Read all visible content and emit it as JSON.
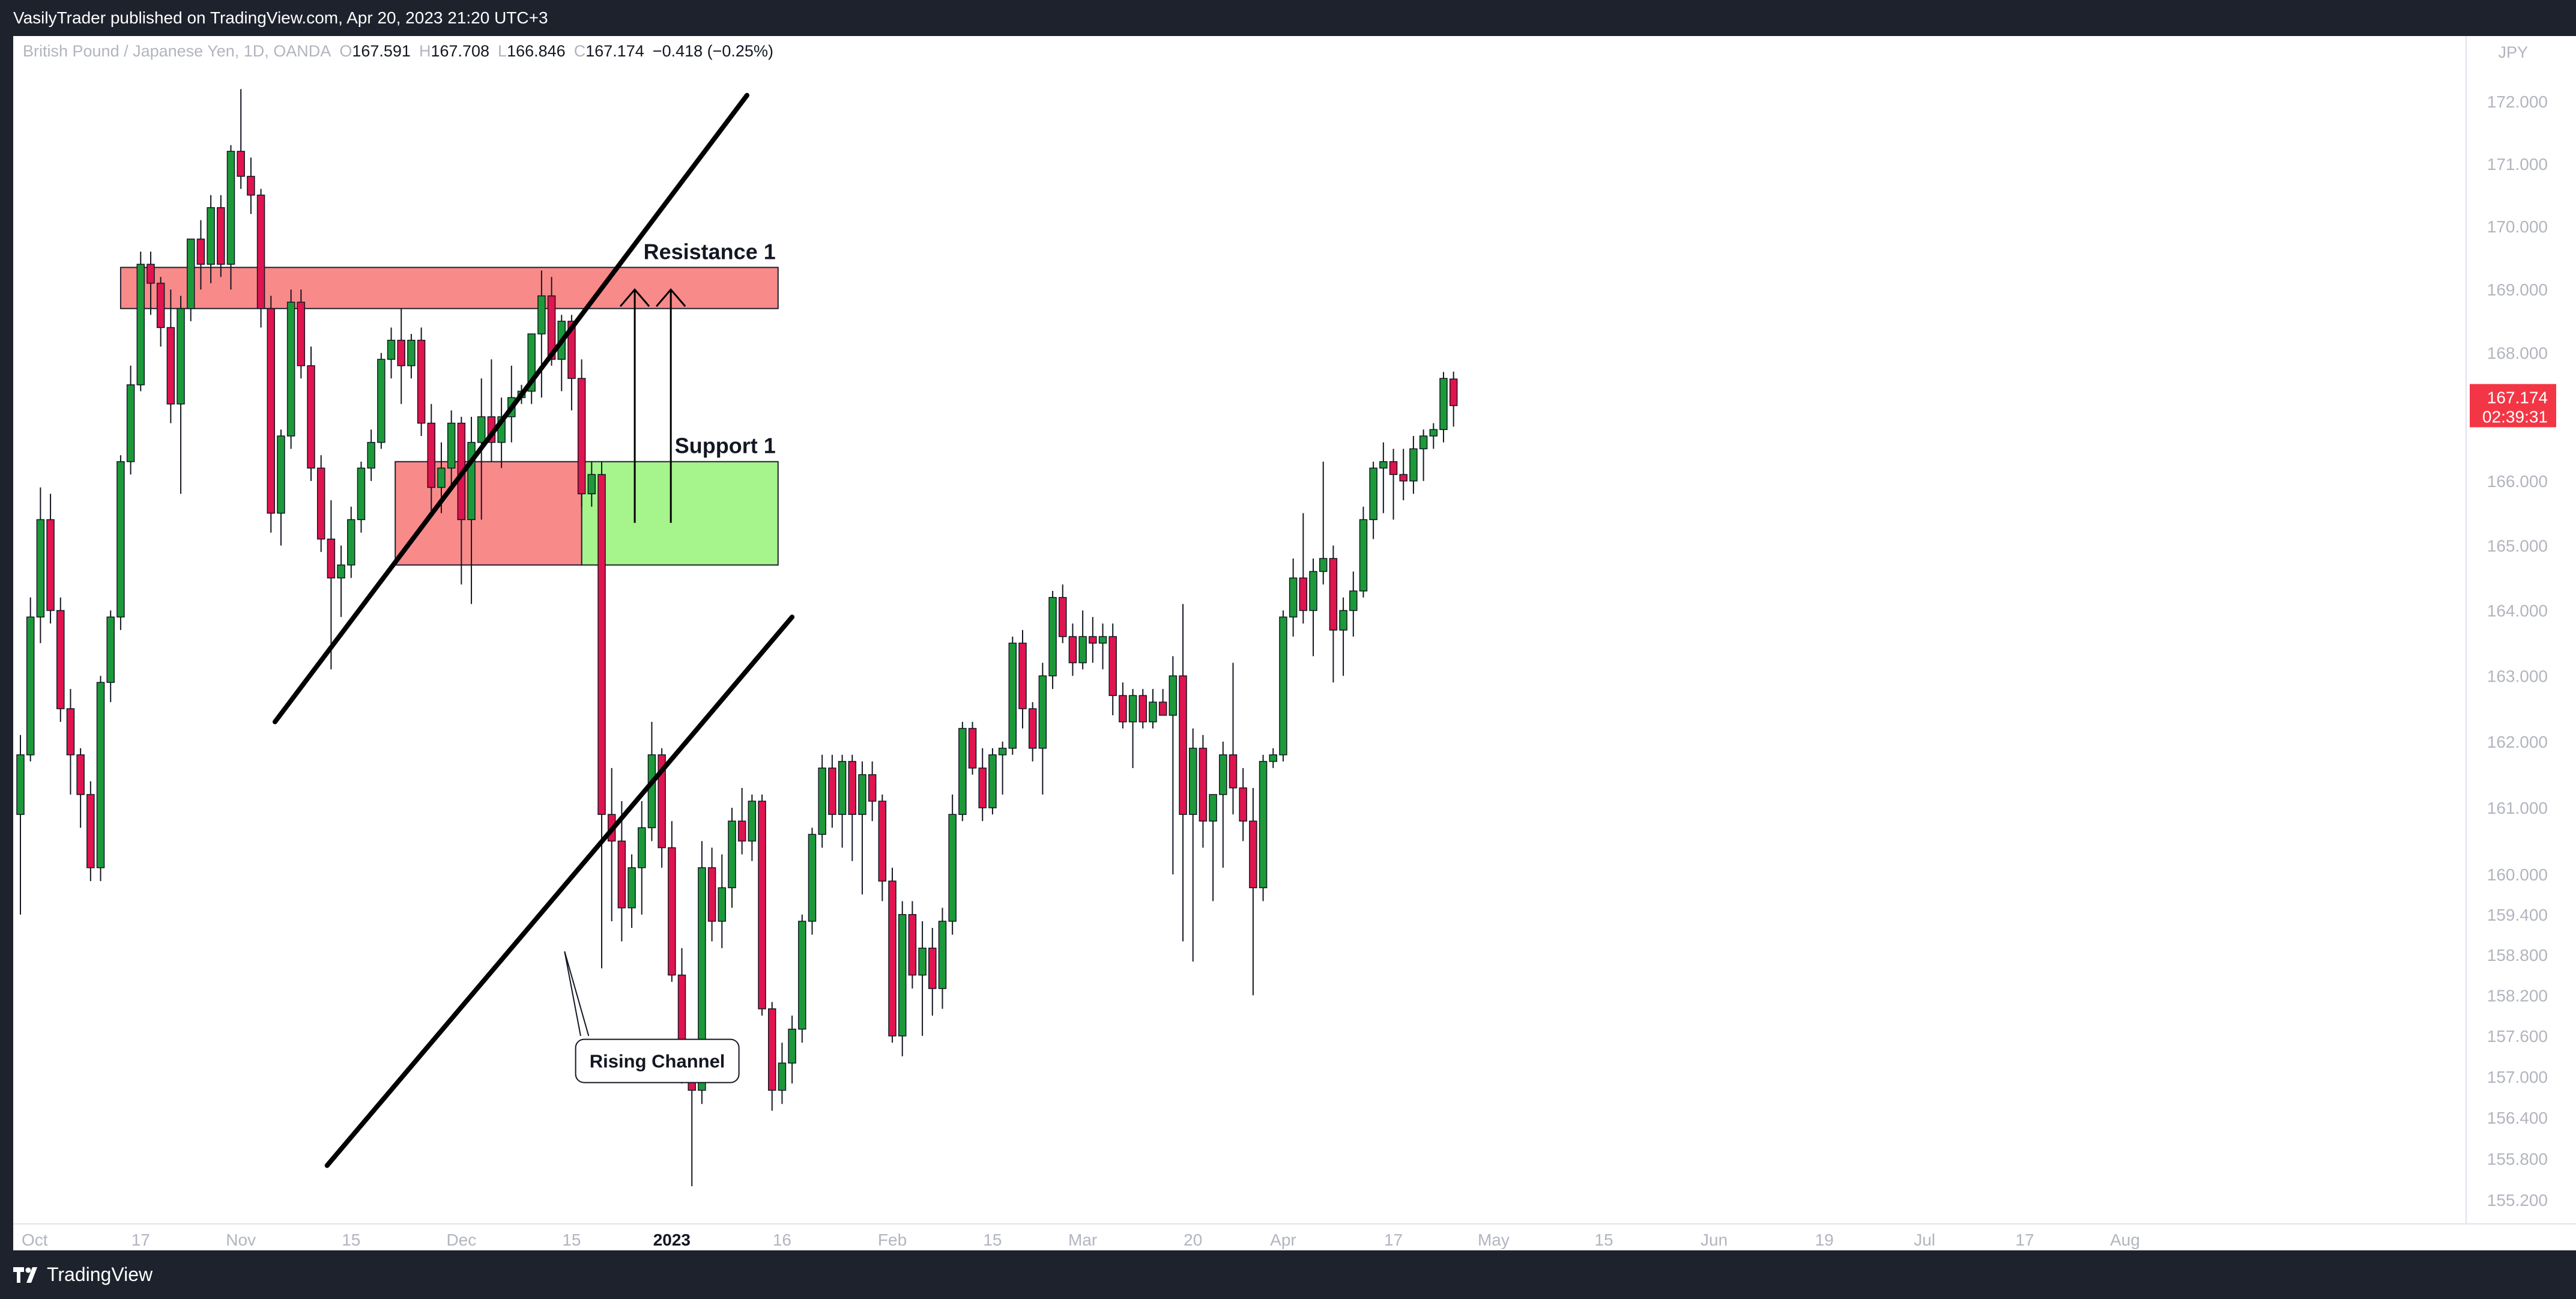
{
  "header": {
    "published": "VasilyTrader published on TradingView.com, Apr 20, 2023 21:20 UTC+3"
  },
  "footer": {
    "brand": "TradingView"
  },
  "legend": {
    "symbol": "British Pound / Japanese Yen, 1D, OANDA",
    "open_label": "O",
    "open": "167.591",
    "high_label": "H",
    "high": "167.708",
    "low_label": "L",
    "low": "166.846",
    "close_label": "C",
    "close": "167.174",
    "change": "−0.418 (−0.25%)"
  },
  "price_axis": {
    "currency": "JPY",
    "tick_labels": [
      "172.000",
      "171.000",
      "170.000",
      "169.000",
      "168.000",
      "166.000",
      "165.000",
      "164.000",
      "163.000",
      "162.000",
      "161.000",
      "160.000",
      "159.400",
      "158.800",
      "158.200",
      "157.600",
      "157.000",
      "156.400",
      "155.800",
      "155.200"
    ]
  },
  "price_tag": {
    "price": "167.174",
    "countdown": "02:39:31",
    "color": "#f23645"
  },
  "time_axis": {
    "labels": [
      "Oct",
      "17",
      "Nov",
      "15",
      "Dec",
      "15",
      "2023",
      "16",
      "Feb",
      "15",
      "Mar",
      "20",
      "Apr",
      "17",
      "May",
      "15",
      "Jun",
      "19",
      "Jul",
      "17",
      "Aug"
    ],
    "bold": [
      "2023"
    ]
  },
  "annotations": {
    "resistance": "Resistance 1",
    "support": "Support 1",
    "channel_callout": "Rising Channel"
  },
  "colors": {
    "up": "#1c9a3a",
    "down": "#e0144f",
    "resistance_zone": "#f98a8a",
    "support_zone": "#a6f48c",
    "background": "#ffffff",
    "frame": "#1e222d"
  },
  "chart_data": {
    "type": "candlestick",
    "symbol": "GBPJPY",
    "timeframe": "1D",
    "yrange": [
      155.0,
      172.4
    ],
    "scale": "log",
    "candles": [
      {
        "o": 160.9,
        "h": 162.1,
        "l": 159.4,
        "c": 161.8
      },
      {
        "o": 161.8,
        "h": 164.2,
        "l": 161.7,
        "c": 163.9
      },
      {
        "o": 163.9,
        "h": 165.9,
        "l": 163.5,
        "c": 165.4
      },
      {
        "o": 165.4,
        "h": 165.8,
        "l": 163.8,
        "c": 164.0
      },
      {
        "o": 164.0,
        "h": 164.2,
        "l": 162.3,
        "c": 162.5
      },
      {
        "o": 162.5,
        "h": 162.8,
        "l": 161.2,
        "c": 161.8
      },
      {
        "o": 161.8,
        "h": 161.9,
        "l": 160.7,
        "c": 161.2
      },
      {
        "o": 161.2,
        "h": 161.4,
        "l": 159.9,
        "c": 160.1
      },
      {
        "o": 160.1,
        "h": 163.0,
        "l": 159.9,
        "c": 162.9
      },
      {
        "o": 162.9,
        "h": 164.0,
        "l": 162.6,
        "c": 163.9
      },
      {
        "o": 163.9,
        "h": 166.4,
        "l": 163.7,
        "c": 166.3
      },
      {
        "o": 166.3,
        "h": 167.8,
        "l": 166.1,
        "c": 167.5
      },
      {
        "o": 167.5,
        "h": 169.6,
        "l": 167.4,
        "c": 169.4
      },
      {
        "o": 169.4,
        "h": 169.6,
        "l": 168.6,
        "c": 169.1
      },
      {
        "o": 169.1,
        "h": 169.2,
        "l": 168.1,
        "c": 168.4
      },
      {
        "o": 168.4,
        "h": 169.0,
        "l": 166.9,
        "c": 167.2
      },
      {
        "o": 167.2,
        "h": 168.9,
        "l": 165.8,
        "c": 168.7
      },
      {
        "o": 168.7,
        "h": 169.8,
        "l": 168.5,
        "c": 169.8
      },
      {
        "o": 169.8,
        "h": 170.1,
        "l": 169.0,
        "c": 169.4
      },
      {
        "o": 169.4,
        "h": 170.5,
        "l": 169.1,
        "c": 170.3
      },
      {
        "o": 170.3,
        "h": 170.5,
        "l": 169.2,
        "c": 169.4
      },
      {
        "o": 169.4,
        "h": 171.3,
        "l": 169.0,
        "c": 171.2
      },
      {
        "o": 171.2,
        "h": 172.2,
        "l": 170.6,
        "c": 170.8
      },
      {
        "o": 170.8,
        "h": 171.1,
        "l": 170.2,
        "c": 170.5
      },
      {
        "o": 170.5,
        "h": 170.6,
        "l": 168.4,
        "c": 168.7
      },
      {
        "o": 168.7,
        "h": 168.9,
        "l": 165.2,
        "c": 165.5
      },
      {
        "o": 165.5,
        "h": 166.8,
        "l": 165.0,
        "c": 166.7
      },
      {
        "o": 166.7,
        "h": 169.0,
        "l": 166.5,
        "c": 168.8
      },
      {
        "o": 168.8,
        "h": 169.0,
        "l": 167.6,
        "c": 167.8
      },
      {
        "o": 167.8,
        "h": 168.1,
        "l": 166.0,
        "c": 166.2
      },
      {
        "o": 166.2,
        "h": 166.4,
        "l": 164.9,
        "c": 165.1
      },
      {
        "o": 165.1,
        "h": 165.7,
        "l": 163.1,
        "c": 164.5
      },
      {
        "o": 164.5,
        "h": 165.0,
        "l": 163.9,
        "c": 164.7
      },
      {
        "o": 164.7,
        "h": 165.6,
        "l": 164.5,
        "c": 165.4
      },
      {
        "o": 165.4,
        "h": 166.3,
        "l": 165.2,
        "c": 166.2
      },
      {
        "o": 166.2,
        "h": 166.8,
        "l": 166.0,
        "c": 166.6
      },
      {
        "o": 166.6,
        "h": 168.0,
        "l": 166.5,
        "c": 167.9
      },
      {
        "o": 167.9,
        "h": 168.4,
        "l": 167.6,
        "c": 168.2
      },
      {
        "o": 168.2,
        "h": 168.7,
        "l": 167.2,
        "c": 167.8
      },
      {
        "o": 167.8,
        "h": 168.3,
        "l": 167.6,
        "c": 168.2
      },
      {
        "o": 168.2,
        "h": 168.4,
        "l": 166.7,
        "c": 166.9
      },
      {
        "o": 166.9,
        "h": 167.2,
        "l": 165.5,
        "c": 165.9
      },
      {
        "o": 165.9,
        "h": 166.6,
        "l": 165.5,
        "c": 166.2
      },
      {
        "o": 166.2,
        "h": 167.1,
        "l": 165.9,
        "c": 166.9
      },
      {
        "o": 166.9,
        "h": 167.0,
        "l": 164.4,
        "c": 165.4
      },
      {
        "o": 165.4,
        "h": 167.0,
        "l": 164.1,
        "c": 166.6
      },
      {
        "o": 166.6,
        "h": 167.6,
        "l": 165.4,
        "c": 167.0
      },
      {
        "o": 167.0,
        "h": 167.9,
        "l": 166.3,
        "c": 166.6
      },
      {
        "o": 166.6,
        "h": 167.3,
        "l": 166.2,
        "c": 167.0
      },
      {
        "o": 167.0,
        "h": 167.8,
        "l": 166.6,
        "c": 167.3
      },
      {
        "o": 167.3,
        "h": 167.5,
        "l": 167.2,
        "c": 167.4
      },
      {
        "o": 167.4,
        "h": 168.3,
        "l": 167.2,
        "c": 168.3
      },
      {
        "o": 168.3,
        "h": 169.3,
        "l": 167.3,
        "c": 168.9
      },
      {
        "o": 168.9,
        "h": 169.2,
        "l": 167.8,
        "c": 167.9
      },
      {
        "o": 167.9,
        "h": 168.6,
        "l": 167.4,
        "c": 168.5
      },
      {
        "o": 168.5,
        "h": 168.6,
        "l": 167.1,
        "c": 167.6
      },
      {
        "o": 167.6,
        "h": 167.9,
        "l": 165.6,
        "c": 165.8
      },
      {
        "o": 165.8,
        "h": 166.3,
        "l": 165.6,
        "c": 166.1
      },
      {
        "o": 166.1,
        "h": 166.3,
        "l": 158.6,
        "c": 160.9
      },
      {
        "o": 160.9,
        "h": 161.6,
        "l": 159.3,
        "c": 160.5
      },
      {
        "o": 160.5,
        "h": 161.1,
        "l": 159.0,
        "c": 159.5
      },
      {
        "o": 159.5,
        "h": 160.3,
        "l": 159.2,
        "c": 160.1
      },
      {
        "o": 160.1,
        "h": 161.1,
        "l": 159.4,
        "c": 160.7
      },
      {
        "o": 160.7,
        "h": 162.3,
        "l": 160.5,
        "c": 161.8
      },
      {
        "o": 161.8,
        "h": 161.9,
        "l": 160.1,
        "c": 160.4
      },
      {
        "o": 160.4,
        "h": 160.8,
        "l": 158.4,
        "c": 158.5
      },
      {
        "o": 158.5,
        "h": 158.9,
        "l": 156.9,
        "c": 157.3
      },
      {
        "o": 157.3,
        "h": 157.5,
        "l": 155.4,
        "c": 156.8
      },
      {
        "o": 156.8,
        "h": 160.5,
        "l": 156.6,
        "c": 160.1
      },
      {
        "o": 160.1,
        "h": 160.4,
        "l": 159.0,
        "c": 159.3
      },
      {
        "o": 159.3,
        "h": 160.3,
        "l": 158.9,
        "c": 159.8
      },
      {
        "o": 159.8,
        "h": 161.0,
        "l": 159.5,
        "c": 160.8
      },
      {
        "o": 160.8,
        "h": 161.3,
        "l": 160.3,
        "c": 160.5
      },
      {
        "o": 160.5,
        "h": 161.2,
        "l": 160.2,
        "c": 161.1
      },
      {
        "o": 161.1,
        "h": 161.2,
        "l": 157.9,
        "c": 158.0
      },
      {
        "o": 158.0,
        "h": 158.1,
        "l": 156.5,
        "c": 156.8
      },
      {
        "o": 156.8,
        "h": 157.5,
        "l": 156.6,
        "c": 157.2
      },
      {
        "o": 157.2,
        "h": 157.9,
        "l": 156.9,
        "c": 157.7
      },
      {
        "o": 157.7,
        "h": 159.4,
        "l": 157.5,
        "c": 159.3
      },
      {
        "o": 159.3,
        "h": 160.7,
        "l": 159.1,
        "c": 160.6
      },
      {
        "o": 160.6,
        "h": 161.8,
        "l": 160.4,
        "c": 161.6
      },
      {
        "o": 161.6,
        "h": 161.8,
        "l": 160.7,
        "c": 160.9
      },
      {
        "o": 160.9,
        "h": 161.8,
        "l": 160.4,
        "c": 161.7
      },
      {
        "o": 161.7,
        "h": 161.8,
        "l": 160.2,
        "c": 160.9
      },
      {
        "o": 160.9,
        "h": 161.7,
        "l": 159.7,
        "c": 161.5
      },
      {
        "o": 161.5,
        "h": 161.7,
        "l": 160.8,
        "c": 161.1
      },
      {
        "o": 161.1,
        "h": 161.2,
        "l": 159.6,
        "c": 159.9
      },
      {
        "o": 159.9,
        "h": 160.1,
        "l": 157.5,
        "c": 157.6
      },
      {
        "o": 157.6,
        "h": 159.6,
        "l": 157.3,
        "c": 159.4
      },
      {
        "o": 159.4,
        "h": 159.6,
        "l": 158.3,
        "c": 158.5
      },
      {
        "o": 158.5,
        "h": 159.3,
        "l": 157.6,
        "c": 158.9
      },
      {
        "o": 158.9,
        "h": 159.2,
        "l": 157.9,
        "c": 158.3
      },
      {
        "o": 158.3,
        "h": 159.5,
        "l": 158.0,
        "c": 159.3
      },
      {
        "o": 159.3,
        "h": 161.2,
        "l": 159.1,
        "c": 160.9
      },
      {
        "o": 160.9,
        "h": 162.3,
        "l": 160.8,
        "c": 162.2
      },
      {
        "o": 162.2,
        "h": 162.3,
        "l": 161.5,
        "c": 161.6
      },
      {
        "o": 161.6,
        "h": 161.9,
        "l": 160.8,
        "c": 161.0
      },
      {
        "o": 161.0,
        "h": 161.9,
        "l": 160.9,
        "c": 161.8
      },
      {
        "o": 161.8,
        "h": 162.0,
        "l": 161.2,
        "c": 161.9
      },
      {
        "o": 161.9,
        "h": 163.6,
        "l": 161.8,
        "c": 163.5
      },
      {
        "o": 163.5,
        "h": 163.7,
        "l": 162.2,
        "c": 162.5
      },
      {
        "o": 162.5,
        "h": 162.6,
        "l": 161.7,
        "c": 161.9
      },
      {
        "o": 161.9,
        "h": 163.2,
        "l": 161.2,
        "c": 163.0
      },
      {
        "o": 163.0,
        "h": 164.3,
        "l": 162.8,
        "c": 164.2
      },
      {
        "o": 164.2,
        "h": 164.4,
        "l": 163.5,
        "c": 163.6
      },
      {
        "o": 163.6,
        "h": 163.8,
        "l": 163.0,
        "c": 163.2
      },
      {
        "o": 163.2,
        "h": 164.0,
        "l": 163.1,
        "c": 163.6
      },
      {
        "o": 163.6,
        "h": 163.9,
        "l": 163.2,
        "c": 163.5
      },
      {
        "o": 163.5,
        "h": 163.8,
        "l": 163.1,
        "c": 163.6
      },
      {
        "o": 163.6,
        "h": 163.8,
        "l": 162.4,
        "c": 162.7
      },
      {
        "o": 162.7,
        "h": 162.9,
        "l": 162.2,
        "c": 162.3
      },
      {
        "o": 162.3,
        "h": 162.8,
        "l": 161.6,
        "c": 162.7
      },
      {
        "o": 162.7,
        "h": 162.8,
        "l": 162.2,
        "c": 162.3
      },
      {
        "o": 162.3,
        "h": 162.8,
        "l": 162.2,
        "c": 162.6
      },
      {
        "o": 162.6,
        "h": 162.8,
        "l": 162.4,
        "c": 162.4
      },
      {
        "o": 162.4,
        "h": 163.3,
        "l": 160.0,
        "c": 163.0
      },
      {
        "o": 163.0,
        "h": 164.1,
        "l": 159.0,
        "c": 160.9
      },
      {
        "o": 160.9,
        "h": 162.2,
        "l": 158.7,
        "c": 161.9
      },
      {
        "o": 161.9,
        "h": 162.1,
        "l": 160.4,
        "c": 160.8
      },
      {
        "o": 160.8,
        "h": 161.2,
        "l": 159.6,
        "c": 161.2
      },
      {
        "o": 161.2,
        "h": 162.0,
        "l": 160.1,
        "c": 161.8
      },
      {
        "o": 161.8,
        "h": 163.2,
        "l": 160.9,
        "c": 161.3
      },
      {
        "o": 161.3,
        "h": 161.6,
        "l": 160.5,
        "c": 160.8
      },
      {
        "o": 160.8,
        "h": 161.3,
        "l": 158.2,
        "c": 159.8
      },
      {
        "o": 159.8,
        "h": 161.8,
        "l": 159.6,
        "c": 161.7
      },
      {
        "o": 161.7,
        "h": 161.9,
        "l": 161.6,
        "c": 161.8
      },
      {
        "o": 161.8,
        "h": 164.0,
        "l": 161.7,
        "c": 163.9
      },
      {
        "o": 163.9,
        "h": 164.8,
        "l": 163.6,
        "c": 164.5
      },
      {
        "o": 164.5,
        "h": 165.5,
        "l": 163.8,
        "c": 164.0
      },
      {
        "o": 164.0,
        "h": 164.8,
        "l": 163.3,
        "c": 164.6
      },
      {
        "o": 164.6,
        "h": 166.3,
        "l": 164.4,
        "c": 164.8
      },
      {
        "o": 164.8,
        "h": 165.0,
        "l": 162.9,
        "c": 163.7
      },
      {
        "o": 163.7,
        "h": 164.2,
        "l": 163.0,
        "c": 164.0
      },
      {
        "o": 164.0,
        "h": 164.6,
        "l": 163.6,
        "c": 164.3
      },
      {
        "o": 164.3,
        "h": 165.6,
        "l": 164.2,
        "c": 165.4
      },
      {
        "o": 165.4,
        "h": 166.3,
        "l": 165.1,
        "c": 166.2
      },
      {
        "o": 166.2,
        "h": 166.6,
        "l": 165.5,
        "c": 166.3
      },
      {
        "o": 166.3,
        "h": 166.5,
        "l": 165.4,
        "c": 166.1
      },
      {
        "o": 166.1,
        "h": 166.5,
        "l": 165.7,
        "c": 166.0
      },
      {
        "o": 166.0,
        "h": 166.7,
        "l": 165.8,
        "c": 166.5
      },
      {
        "o": 166.5,
        "h": 166.8,
        "l": 166.0,
        "c": 166.7
      },
      {
        "o": 166.7,
        "h": 166.9,
        "l": 166.5,
        "c": 166.8
      },
      {
        "o": 166.8,
        "h": 167.7,
        "l": 166.6,
        "c": 167.6
      },
      {
        "o": 167.591,
        "h": 167.708,
        "l": 166.846,
        "c": 167.174
      }
    ],
    "zones": [
      {
        "label": "Resistance 1",
        "from": 168.7,
        "to": 169.35
      },
      {
        "label": "Support 1",
        "from": 164.7,
        "to": 166.3
      },
      {
        "label": "",
        "from": 164.7,
        "to": 166.3
      }
    ],
    "channel": {
      "upper": [
        [
          162.3,
          163.2
        ],
        [
          172.1,
          172.2
        ]
      ],
      "lower": [
        [
          155.7,
          163.2
        ],
        [
          163.9,
          172.2
        ]
      ]
    },
    "projection_targets": [
      169.0,
      169.0
    ]
  }
}
